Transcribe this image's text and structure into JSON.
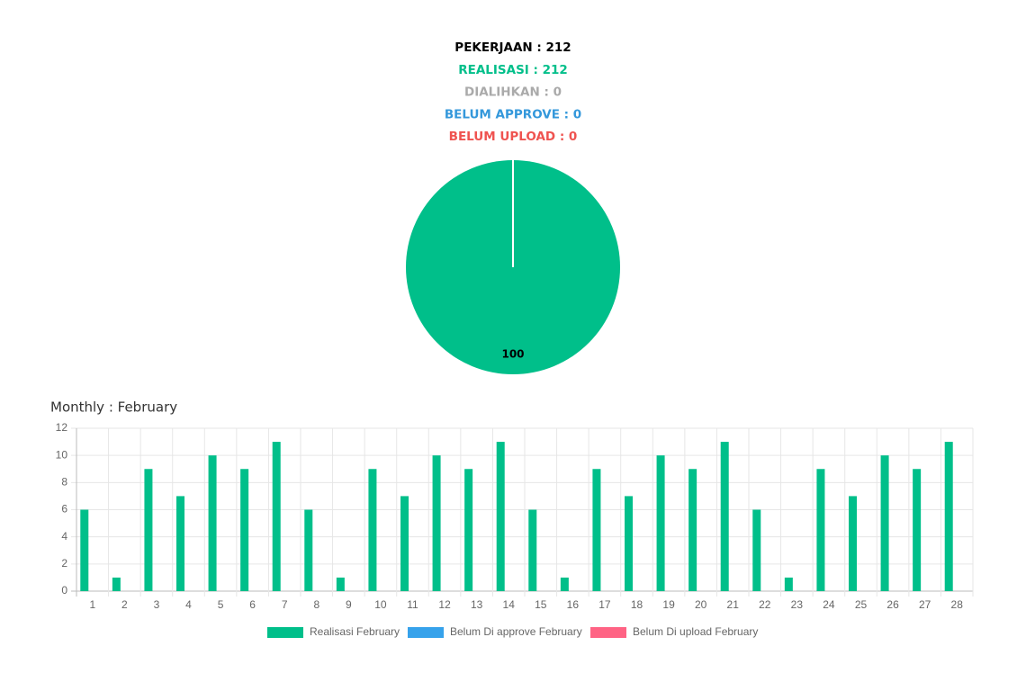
{
  "summary": [
    "PEKERJAAN : 212",
    "REALISASI : 212",
    "DIALIHKAN : 0",
    "BELUM APPROVE : 0",
    "BELUM UPLOAD : 0"
  ],
  "summary_colors": [
    "#000000",
    "#00bf8a",
    "#aaaaaa",
    "#3498db",
    "#ef5350"
  ],
  "chart_data": [
    {
      "type": "pie",
      "values": [
        100
      ],
      "value_labels": [
        "100"
      ],
      "colors": [
        "#00bf8a"
      ]
    },
    {
      "type": "bar",
      "title": "Monthly : February",
      "categories": [
        "1",
        "2",
        "3",
        "4",
        "5",
        "6",
        "7",
        "8",
        "9",
        "10",
        "11",
        "12",
        "13",
        "14",
        "15",
        "16",
        "17",
        "18",
        "19",
        "20",
        "21",
        "22",
        "23",
        "24",
        "25",
        "26",
        "27",
        "28"
      ],
      "series": [
        {
          "name": "Realisasi February",
          "color": "#00bf8a",
          "values": [
            6,
            1,
            9,
            7,
            10,
            9,
            11,
            6,
            1,
            9,
            7,
            10,
            9,
            11,
            6,
            1,
            9,
            7,
            10,
            9,
            11,
            6,
            1,
            9,
            7,
            10,
            9,
            11
          ]
        },
        {
          "name": "Belum Di approve February",
          "color": "#36a2eb",
          "values": [
            0,
            0,
            0,
            0,
            0,
            0,
            0,
            0,
            0,
            0,
            0,
            0,
            0,
            0,
            0,
            0,
            0,
            0,
            0,
            0,
            0,
            0,
            0,
            0,
            0,
            0,
            0,
            0
          ]
        },
        {
          "name": "Belum Di upload February",
          "color": "#ff6384",
          "values": [
            0,
            0,
            0,
            0,
            0,
            0,
            0,
            0,
            0,
            0,
            0,
            0,
            0,
            0,
            0,
            0,
            0,
            0,
            0,
            0,
            0,
            0,
            0,
            0,
            0,
            0,
            0,
            0
          ]
        }
      ],
      "ylim": [
        0,
        12
      ],
      "yticks": [
        0,
        2,
        4,
        6,
        8,
        10,
        12
      ],
      "grid": true,
      "legend": "bottom"
    }
  ]
}
